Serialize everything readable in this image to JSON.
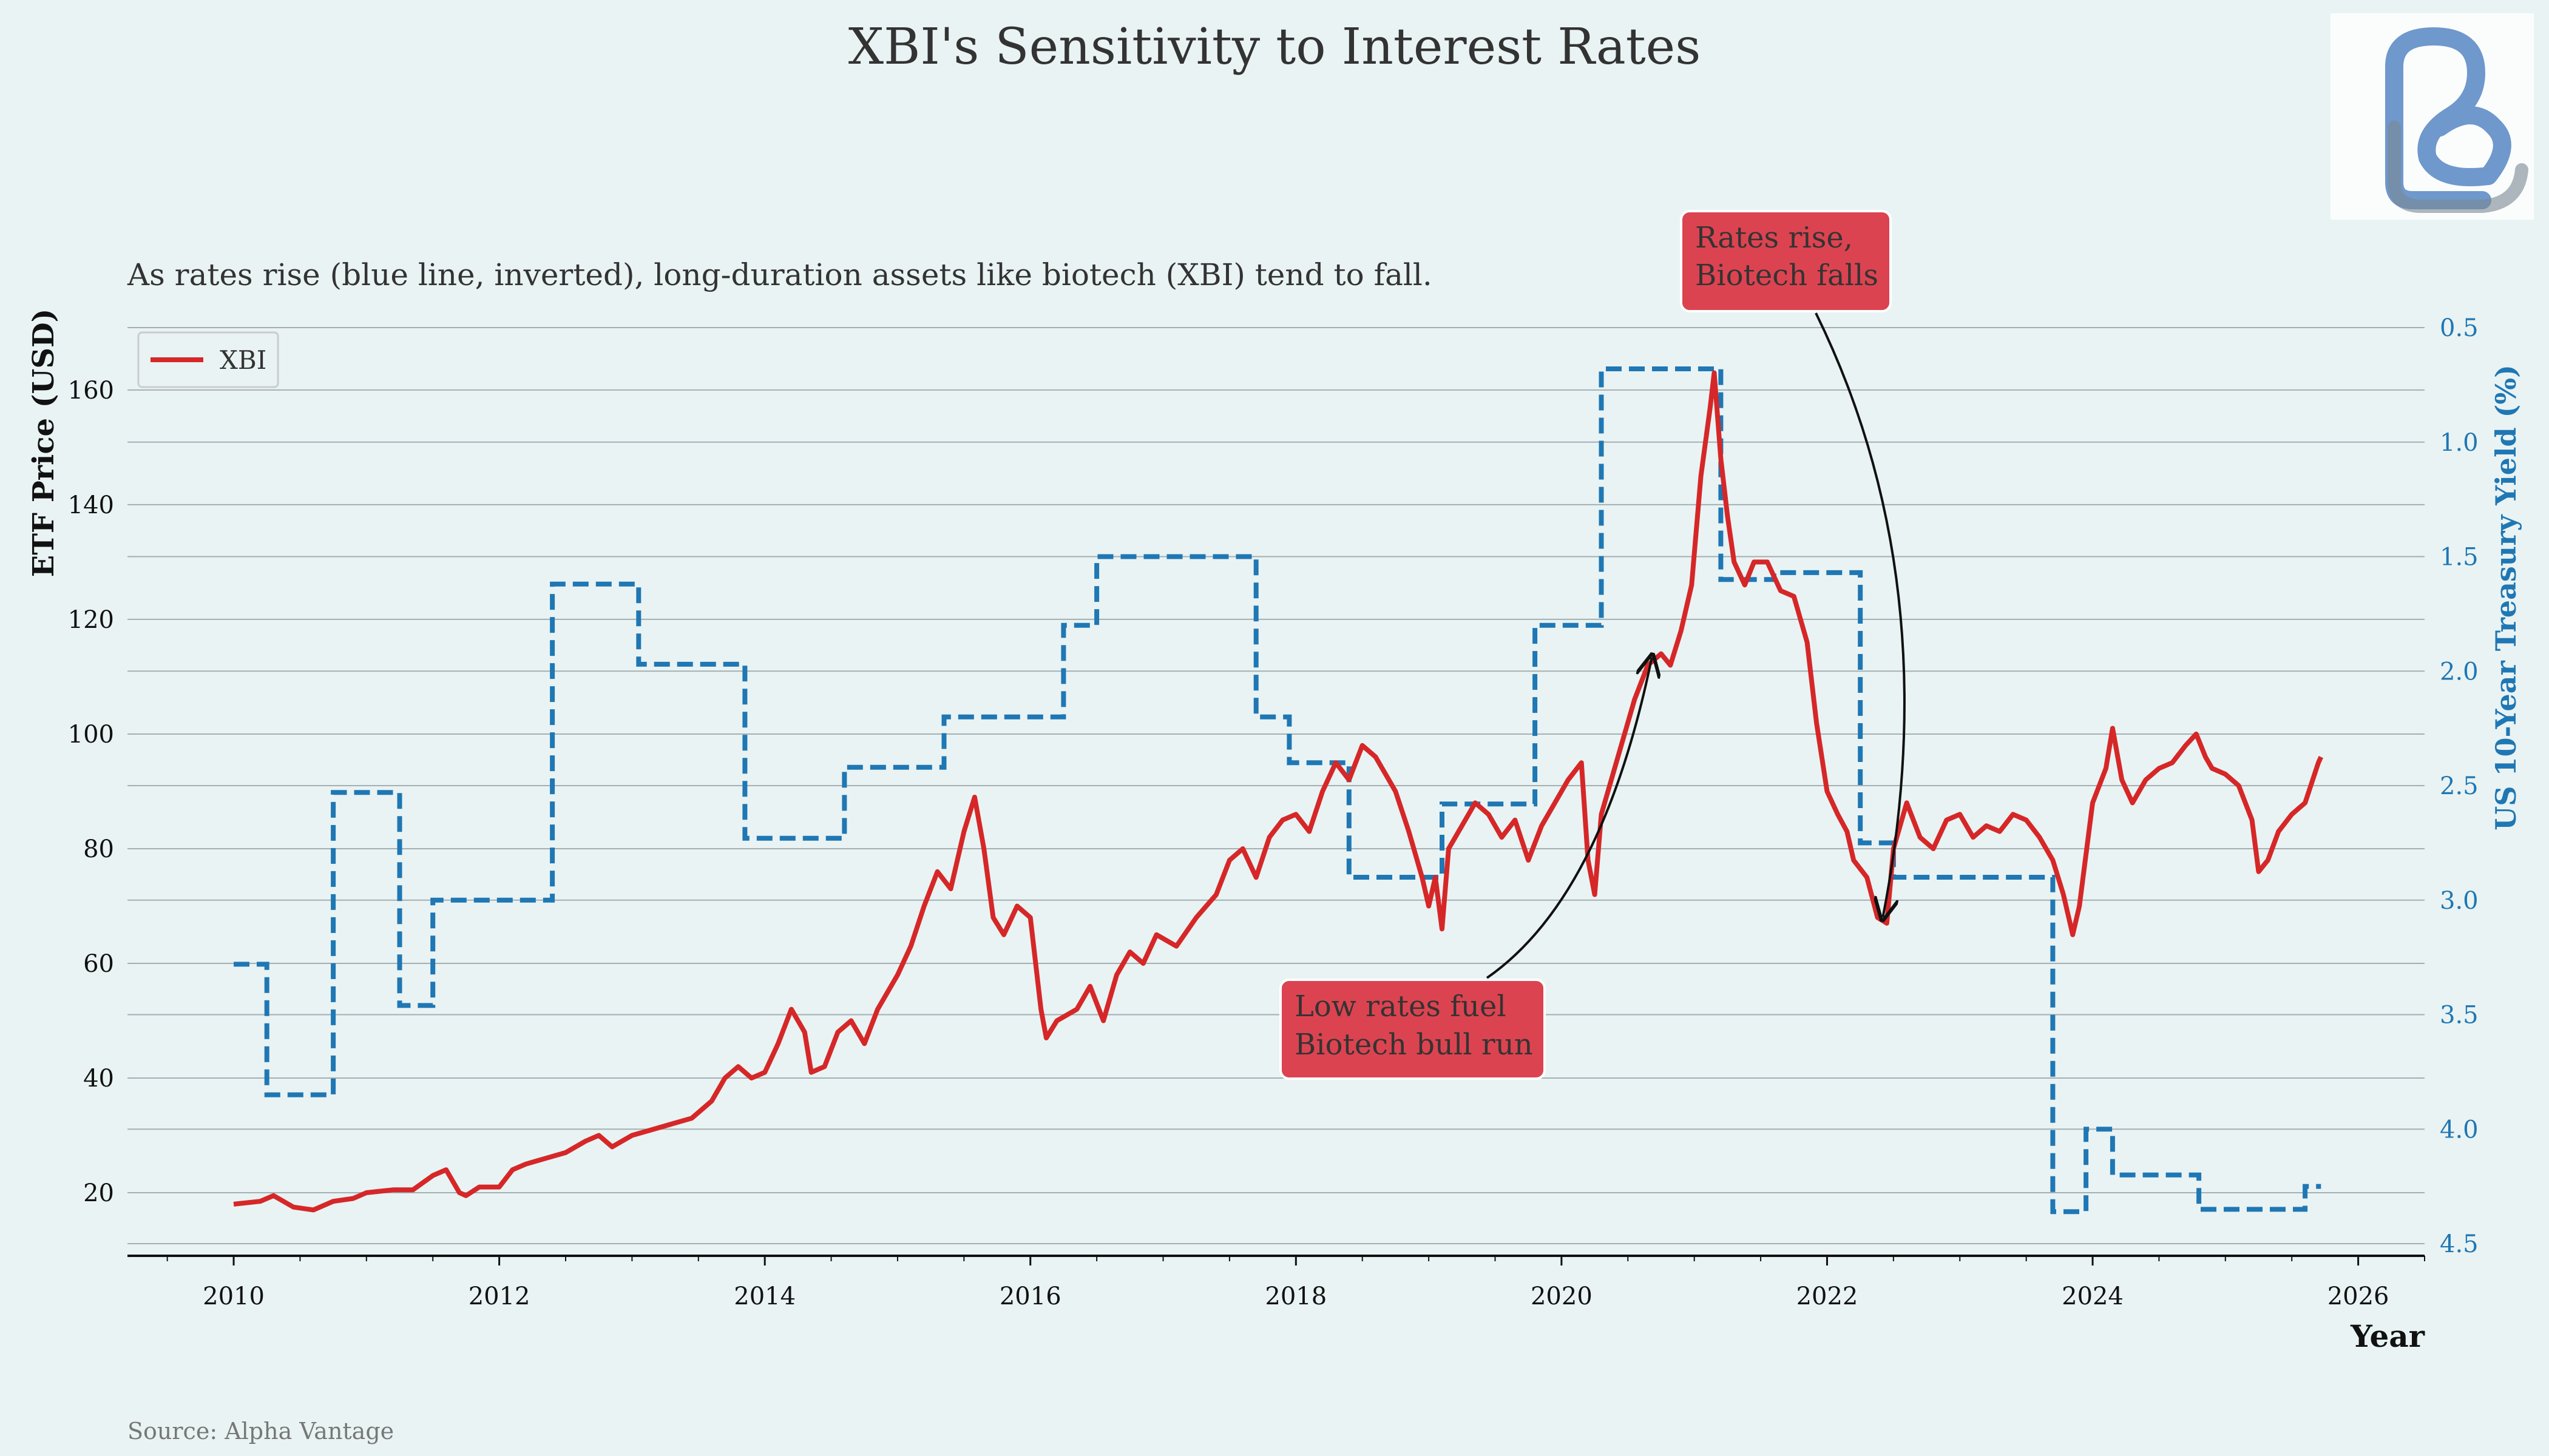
{
  "chart_data": {
    "type": "line",
    "title": "XBI's Sensitivity to Interest Rates",
    "subtitle": "As rates rise (blue line, inverted), long-duration assets like biotech (XBI) tend to fall.",
    "source": "Source: Alpha Vantage",
    "xlabel": "Year",
    "ylabel_left": "ETF Price (USD)",
    "ylabel_right": "US 10-Year Treasury Yield (%)",
    "xlim": [
      2009.2,
      2026.5
    ],
    "ylim_left": [
      9,
      173
    ],
    "ylim_right_inverted": [
      4.5,
      0.5
    ],
    "x_ticks": [
      "2010",
      "2012",
      "2014",
      "2016",
      "2018",
      "2020",
      "2022",
      "2024",
      "2026"
    ],
    "y_left_ticks": [
      "20",
      "40",
      "60",
      "80",
      "100",
      "120",
      "140",
      "160"
    ],
    "y_right_ticks": [
      "0.5",
      "1.0",
      "1.5",
      "2.0",
      "2.5",
      "3.0",
      "3.5",
      "4.0",
      "4.5"
    ],
    "legend": [
      {
        "label": "XBI",
        "color": "#d62728",
        "position": "upper-left"
      }
    ],
    "series": [
      {
        "name": "XBI",
        "axis": "left",
        "color": "#d62728",
        "points": [
          [
            2010.0,
            18
          ],
          [
            2010.2,
            18.5
          ],
          [
            2010.3,
            19.5
          ],
          [
            2010.45,
            17.5
          ],
          [
            2010.6,
            17
          ],
          [
            2010.75,
            18.5
          ],
          [
            2010.9,
            19
          ],
          [
            2011.0,
            20
          ],
          [
            2011.2,
            20.5
          ],
          [
            2011.35,
            20.5
          ],
          [
            2011.5,
            23
          ],
          [
            2011.6,
            24
          ],
          [
            2011.7,
            20
          ],
          [
            2011.75,
            19.5
          ],
          [
            2011.85,
            21
          ],
          [
            2012.0,
            21
          ],
          [
            2012.1,
            24
          ],
          [
            2012.2,
            25
          ],
          [
            2012.35,
            26
          ],
          [
            2012.5,
            27
          ],
          [
            2012.65,
            29
          ],
          [
            2012.75,
            30
          ],
          [
            2012.85,
            28
          ],
          [
            2013.0,
            30
          ],
          [
            2013.15,
            31
          ],
          [
            2013.3,
            32
          ],
          [
            2013.45,
            33
          ],
          [
            2013.6,
            36
          ],
          [
            2013.7,
            40
          ],
          [
            2013.8,
            42
          ],
          [
            2013.9,
            40
          ],
          [
            2014.0,
            41
          ],
          [
            2014.1,
            46
          ],
          [
            2014.2,
            52
          ],
          [
            2014.3,
            48
          ],
          [
            2014.35,
            41
          ],
          [
            2014.45,
            42
          ],
          [
            2014.55,
            48
          ],
          [
            2014.65,
            50
          ],
          [
            2014.75,
            46
          ],
          [
            2014.85,
            52
          ],
          [
            2015.0,
            58
          ],
          [
            2015.1,
            63
          ],
          [
            2015.2,
            70
          ],
          [
            2015.3,
            76
          ],
          [
            2015.4,
            73
          ],
          [
            2015.5,
            83
          ],
          [
            2015.58,
            89
          ],
          [
            2015.65,
            80
          ],
          [
            2015.72,
            68
          ],
          [
            2015.8,
            65
          ],
          [
            2015.9,
            70
          ],
          [
            2016.0,
            68
          ],
          [
            2016.08,
            52
          ],
          [
            2016.12,
            47
          ],
          [
            2016.2,
            50
          ],
          [
            2016.35,
            52
          ],
          [
            2016.45,
            56
          ],
          [
            2016.55,
            50
          ],
          [
            2016.65,
            58
          ],
          [
            2016.75,
            62
          ],
          [
            2016.85,
            60
          ],
          [
            2016.95,
            65
          ],
          [
            2017.1,
            63
          ],
          [
            2017.25,
            68
          ],
          [
            2017.4,
            72
          ],
          [
            2017.5,
            78
          ],
          [
            2017.6,
            80
          ],
          [
            2017.7,
            75
          ],
          [
            2017.8,
            82
          ],
          [
            2017.9,
            85
          ],
          [
            2018.0,
            86
          ],
          [
            2018.1,
            83
          ],
          [
            2018.2,
            90
          ],
          [
            2018.3,
            95
          ],
          [
            2018.4,
            92
          ],
          [
            2018.5,
            98
          ],
          [
            2018.6,
            96
          ],
          [
            2018.75,
            90
          ],
          [
            2018.85,
            83
          ],
          [
            2018.95,
            75
          ],
          [
            2019.0,
            70
          ],
          [
            2019.05,
            75
          ],
          [
            2019.1,
            66
          ],
          [
            2019.15,
            80
          ],
          [
            2019.25,
            84
          ],
          [
            2019.35,
            88
          ],
          [
            2019.45,
            86
          ],
          [
            2019.55,
            82
          ],
          [
            2019.65,
            85
          ],
          [
            2019.75,
            78
          ],
          [
            2019.85,
            84
          ],
          [
            2019.95,
            88
          ],
          [
            2020.05,
            92
          ],
          [
            2020.15,
            95
          ],
          [
            2020.2,
            78
          ],
          [
            2020.25,
            72
          ],
          [
            2020.3,
            86
          ],
          [
            2020.45,
            98
          ],
          [
            2020.55,
            106
          ],
          [
            2020.65,
            112
          ],
          [
            2020.75,
            114
          ],
          [
            2020.82,
            112
          ],
          [
            2020.9,
            118
          ],
          [
            2020.98,
            126
          ],
          [
            2021.05,
            145
          ],
          [
            2021.12,
            157
          ],
          [
            2021.15,
            163
          ],
          [
            2021.2,
            148
          ],
          [
            2021.25,
            138
          ],
          [
            2021.3,
            130
          ],
          [
            2021.38,
            126
          ],
          [
            2021.45,
            130
          ],
          [
            2021.55,
            130
          ],
          [
            2021.65,
            125
          ],
          [
            2021.75,
            124
          ],
          [
            2021.85,
            116
          ],
          [
            2021.92,
            102
          ],
          [
            2022.0,
            90
          ],
          [
            2022.08,
            86
          ],
          [
            2022.15,
            83
          ],
          [
            2022.2,
            78
          ],
          [
            2022.3,
            75
          ],
          [
            2022.38,
            68
          ],
          [
            2022.45,
            67
          ],
          [
            2022.5,
            80
          ],
          [
            2022.6,
            88
          ],
          [
            2022.7,
            82
          ],
          [
            2022.8,
            80
          ],
          [
            2022.9,
            85
          ],
          [
            2023.0,
            86
          ],
          [
            2023.1,
            82
          ],
          [
            2023.2,
            84
          ],
          [
            2023.3,
            83
          ],
          [
            2023.4,
            86
          ],
          [
            2023.5,
            85
          ],
          [
            2023.6,
            82
          ],
          [
            2023.7,
            78
          ],
          [
            2023.78,
            72
          ],
          [
            2023.85,
            65
          ],
          [
            2023.9,
            70
          ],
          [
            2024.0,
            88
          ],
          [
            2024.1,
            94
          ],
          [
            2024.15,
            101
          ],
          [
            2024.22,
            92
          ],
          [
            2024.3,
            88
          ],
          [
            2024.4,
            92
          ],
          [
            2024.5,
            94
          ],
          [
            2024.6,
            95
          ],
          [
            2024.7,
            98
          ],
          [
            2024.78,
            100
          ],
          [
            2024.85,
            96
          ],
          [
            2024.9,
            94
          ],
          [
            2025.0,
            93
          ],
          [
            2025.1,
            91
          ],
          [
            2025.2,
            85
          ],
          [
            2025.25,
            76
          ],
          [
            2025.32,
            78
          ],
          [
            2025.4,
            83
          ],
          [
            2025.5,
            86
          ],
          [
            2025.6,
            88
          ],
          [
            2025.7,
            95
          ],
          [
            2025.72,
            96
          ]
        ]
      },
      {
        "name": "US 10-Year Treasury Yield (%)",
        "axis": "right",
        "color": "#1f77b4",
        "style": "dashed-step",
        "points": [
          [
            2010.0,
            3.28
          ],
          [
            2010.25,
            3.85
          ],
          [
            2010.75,
            2.53
          ],
          [
            2011.25,
            3.46
          ],
          [
            2011.5,
            3.0
          ],
          [
            2012.4,
            1.62
          ],
          [
            2013.05,
            1.97
          ],
          [
            2013.85,
            2.73
          ],
          [
            2014.6,
            2.42
          ],
          [
            2015.35,
            2.2
          ],
          [
            2016.25,
            1.8
          ],
          [
            2016.5,
            1.5
          ],
          [
            2017.7,
            2.2
          ],
          [
            2017.95,
            2.4
          ],
          [
            2018.4,
            2.9
          ],
          [
            2018.95,
            2.9
          ],
          [
            2019.1,
            2.58
          ],
          [
            2019.8,
            1.8
          ],
          [
            2020.3,
            0.68
          ],
          [
            2021.2,
            1.6
          ],
          [
            2021.6,
            1.57
          ],
          [
            2022.25,
            2.75
          ],
          [
            2022.5,
            2.9
          ],
          [
            2023.7,
            4.36
          ],
          [
            2023.95,
            4.0
          ],
          [
            2024.15,
            4.2
          ],
          [
            2024.8,
            4.35
          ],
          [
            2025.6,
            4.25
          ],
          [
            2025.72,
            4.25
          ]
        ]
      }
    ],
    "annotations": [
      {
        "text_lines": [
          "Low rates fuel",
          "Biotech bull run"
        ],
        "arrow_target": [
          2020.68,
          114
        ]
      },
      {
        "text_lines": [
          "Rates rise,",
          "Biotech falls"
        ],
        "arrow_target": [
          2022.42,
          67
        ]
      }
    ]
  },
  "logo": {
    "name": "brand-logo",
    "color": "#6f98cc"
  }
}
